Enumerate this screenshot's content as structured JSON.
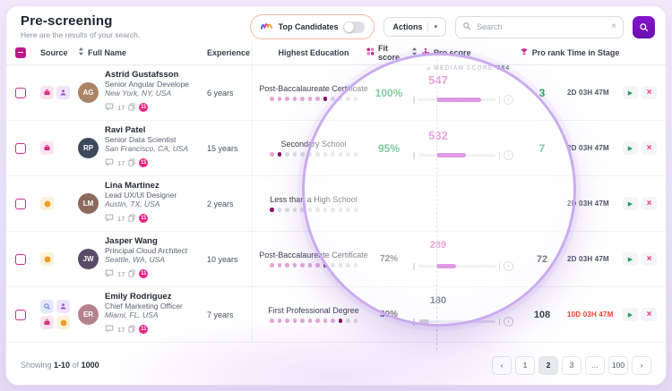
{
  "page": {
    "title": "Pre-screening",
    "subtitle": "Here are the results of your search."
  },
  "toolbar": {
    "top_candidates": {
      "label": "Top Candidates",
      "enabled": false
    },
    "actions_label": "Actions",
    "search": {
      "placeholder": "Search"
    }
  },
  "glyphs": {
    "chevron_down": "▾",
    "clear": "×",
    "play": "▶",
    "remove": "×",
    "info": "i",
    "prev": "‹",
    "next": "›"
  },
  "colors": {
    "accent_magenta": "#BD1787",
    "accent_purple": "#7412BE",
    "green": "#1FA45B",
    "score_pink": "#E05FC4",
    "bar_pink": "#C94FD0",
    "bar_gray": "#B9BEC9",
    "red": "#F4402C",
    "lens_border": "#CBABEF"
  },
  "table": {
    "columns": {
      "source": "Source",
      "full_name": "Full Name",
      "experience": "Experience",
      "education": "Highest Education",
      "fit": "Fit score",
      "pro_score": "Pro score",
      "pro_rank": "Pro rank",
      "time": "Time in Stage"
    },
    "median": {
      "label": "MEDIAN SCORE",
      "value": "284"
    },
    "rows": [
      {
        "name": "Astrid Gustafsson",
        "title": "Senior Angular Develope",
        "location": "New York, NY, USA",
        "initials": "AG",
        "avatar_color": "#A98467",
        "experience": "6 years",
        "education": "Post-Baccalaureate Certificate",
        "education_level": 8,
        "education_total": 12,
        "comments": "17",
        "badge": "11",
        "sources": [
          "briefcase",
          "person"
        ],
        "fit": "100%",
        "fit_color": "#1FA45B",
        "large": true,
        "score": "547",
        "score_color": "#E05FC4",
        "bar": {
          "from": 24,
          "to": 82,
          "color": "#C94FD0"
        },
        "rank": "3",
        "rank_color": "#1FA45B",
        "time": "2D 03H 47M",
        "time_color": "#4C5564"
      },
      {
        "name": "Ravi Patel",
        "title": "Senior Data Scientist",
        "location": "San Francisco, CA, USA",
        "initials": "RP",
        "avatar_color": "#3E4A5A",
        "experience": "15 years",
        "education": "Secondary School",
        "education_level": 2,
        "education_total": 12,
        "comments": "17",
        "badge": "11",
        "sources": [
          "briefcase"
        ],
        "fit": "95%",
        "fit_color": "#1FA45B",
        "large": true,
        "score": "532",
        "score_color": "#E05FC4",
        "bar": {
          "from": 24,
          "to": 62,
          "color": "#C94FD0"
        },
        "rank": "7",
        "rank_color": "#1FA45B",
        "time": "2D 03H 47M",
        "time_color": "#4C5564"
      },
      {
        "name": "Lina Martinez",
        "title": "Lead UX/UI Designer",
        "location": "Austin, TX, USA",
        "initials": "LM",
        "avatar_color": "#8C6A5D",
        "experience": "2 years",
        "education": "Less than a High School",
        "education_level": 1,
        "education_total": 12,
        "comments": "17",
        "badge": "11",
        "sources": [
          "coin"
        ],
        "fit": "",
        "fit_color": "#475060",
        "large": false,
        "score": "",
        "score_color": "#E05FC4",
        "bar": null,
        "rank": "",
        "rank_color": "#39414E",
        "time": "2D 03H 47M",
        "time_color": "#4C5564"
      },
      {
        "name": "Jasper Wang",
        "title": "Principal Cloud Architect",
        "location": "Seattle, WA, USA",
        "initials": "JW",
        "avatar_color": "#5A4A68",
        "experience": "10 years",
        "education": "Post-Baccalaureate Certificate",
        "education_level": 8,
        "education_total": 12,
        "comments": "17",
        "badge": "11",
        "sources": [
          "coin"
        ],
        "fit": "72%",
        "fit_color": "#475060",
        "large": false,
        "score": "289",
        "score_color": "#E05FC4",
        "bar": {
          "from": 24,
          "to": 50,
          "color": "#C94FD0"
        },
        "rank": "72",
        "rank_color": "#39414E",
        "time": "2D 03H 47M",
        "time_color": "#4C5564"
      },
      {
        "name": "Emily Rodriguez",
        "title": "Chief Marketing Officer",
        "location": "Miami, FL, USA",
        "initials": "ER",
        "avatar_color": "#B5838D",
        "experience": "7 years",
        "education": "First Professional Degree",
        "education_level": 10,
        "education_total": 12,
        "comments": "17",
        "badge": "11",
        "sources": [
          "magnifier",
          "person",
          "briefcase",
          "coin"
        ],
        "fit": "30%",
        "fit_color": "#475060",
        "large": false,
        "score": "180",
        "score_color": "#4C5564",
        "bar": {
          "from": 2,
          "to": 14,
          "color": "#B9BEC9"
        },
        "rank": "108",
        "rank_color": "#39414E",
        "time": "10D 03H 47M",
        "time_color": "#F4402C"
      }
    ]
  },
  "footer": {
    "showing_label": "Showing",
    "range": "1-10",
    "of_label": "of",
    "total": "1000",
    "pages": [
      "1",
      "2",
      "3",
      "…",
      "100"
    ],
    "active_page": "2"
  }
}
